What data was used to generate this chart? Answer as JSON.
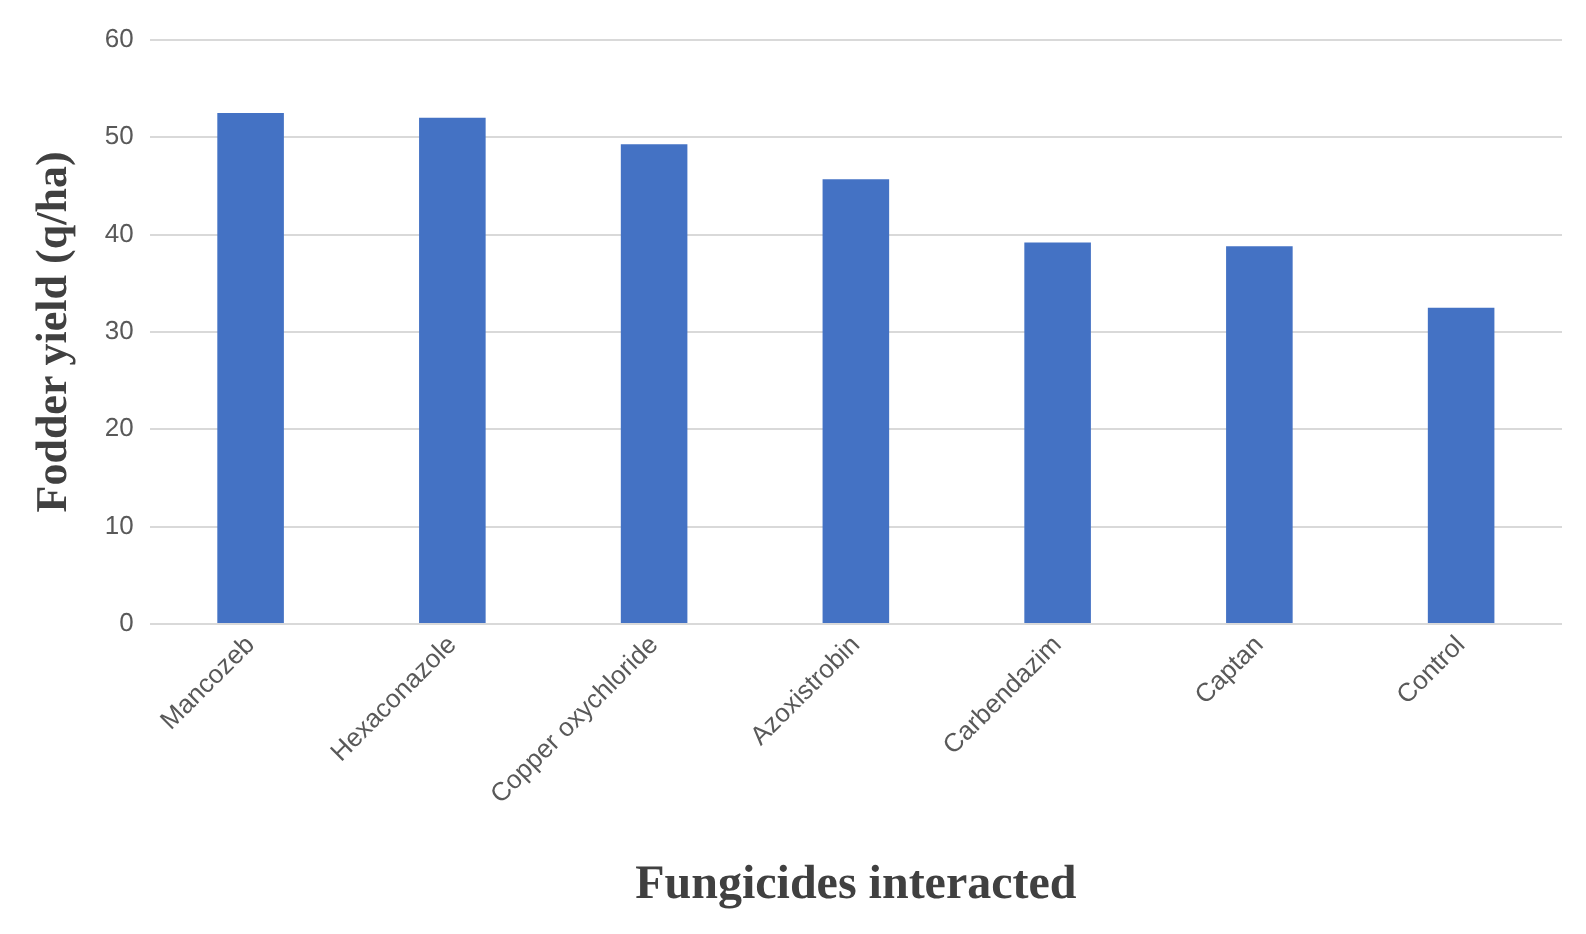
{
  "chart_data": {
    "type": "bar",
    "xlabel": "Fungicides interacted",
    "ylabel": "Fodder yield (q/ha)",
    "categories": [
      "Mancozeb",
      "Hexaconazole",
      "Copper oxychloride",
      "Azoxistrobin",
      "Carbendazim",
      "Captan",
      "Control"
    ],
    "values": [
      52.5,
      52,
      49.3,
      45.7,
      39.2,
      38.8,
      32.5
    ],
    "color": "#4472c4",
    "ylim": [
      0,
      60
    ],
    "yticks": [
      0,
      10,
      20,
      30,
      40,
      50,
      60
    ],
    "grid": "y"
  }
}
